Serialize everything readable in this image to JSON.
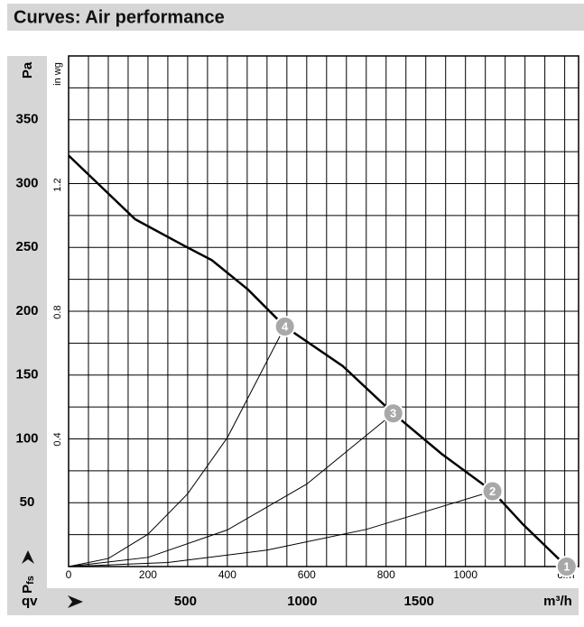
{
  "title": "Curves: Air performance",
  "chart_data": {
    "type": "line",
    "y_label": "Pa",
    "y2_label": "in wg",
    "x_label": "cfm",
    "x2_label": "m³/h",
    "x_symbol": "qv",
    "y_symbol": "P",
    "y_symbol_sub": "fs",
    "xlim": [
      0,
      1285
    ],
    "xticks": [
      0,
      200,
      400,
      600,
      800,
      1000
    ],
    "x2lim": [
      0,
      2183
    ],
    "x2ticks": [
      500,
      1000,
      1500
    ],
    "ylim": [
      0,
      400
    ],
    "yticks": [
      50,
      100,
      150,
      200,
      250,
      300,
      350
    ],
    "y2lim": [
      0,
      1.606
    ],
    "y2ticks": [
      0.4,
      0.8,
      1.2
    ],
    "xgrid": [
      50,
      100,
      150,
      200,
      250,
      300,
      350,
      400,
      450,
      500,
      550,
      600,
      650,
      700,
      750,
      800,
      850,
      900,
      950,
      1000,
      1050,
      1100,
      1150,
      1200,
      1250
    ],
    "ygrid": [
      25,
      50,
      75,
      100,
      125,
      150,
      175,
      200,
      225,
      250,
      275,
      300,
      325,
      350,
      375
    ],
    "series": [
      {
        "color": "#000000",
        "x": [
          0,
          168,
          293,
          361,
          452,
          545,
          691,
          818,
          941,
          1068,
          1145,
          1255
        ],
        "values": [
          322,
          272,
          251,
          240,
          217,
          188,
          157,
          120,
          88,
          59,
          33,
          0
        ]
      },
      {
        "color": "#000000",
        "x": [
          0,
          100,
          200,
          300,
          400,
          545
        ],
        "values": [
          0,
          6.3,
          25.3,
          57,
          101,
          188
        ]
      },
      {
        "color": "#000000",
        "x": [
          0,
          200,
          400,
          600,
          818
        ],
        "values": [
          0,
          7.2,
          28.7,
          64.6,
          120
        ]
      },
      {
        "color": "#000000",
        "x": [
          0,
          250,
          500,
          750,
          1068
        ],
        "values": [
          0,
          3.2,
          12.9,
          29.1,
          59
        ]
      }
    ],
    "points": [
      {
        "label": "1",
        "x": 1255,
        "y": 0
      },
      {
        "label": "2",
        "x": 1068,
        "y": 59
      },
      {
        "label": "3",
        "x": 818,
        "y": 120
      },
      {
        "label": "4",
        "x": 545,
        "y": 188
      }
    ]
  }
}
